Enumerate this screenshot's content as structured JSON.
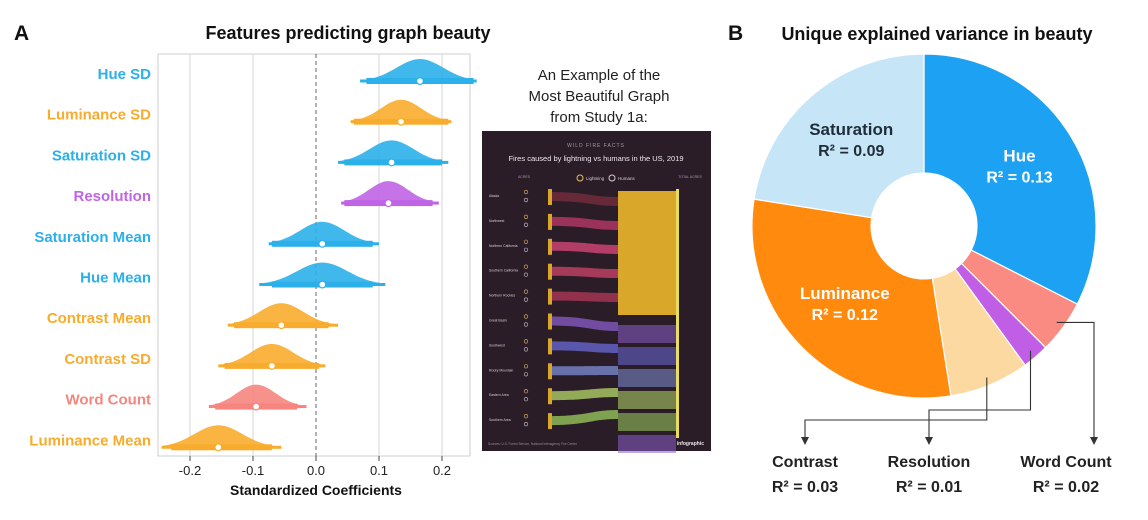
{
  "panel_a": {
    "letter": "A",
    "title": "Features predicting graph beauty",
    "xlabel": "Standardized Coefficients",
    "inset_caption": [
      "An Example of the",
      "Most Beautiful Graph",
      "from Study 1a:"
    ],
    "inset_chart": {
      "kicker": "WILD FIRE FACTS",
      "title": "Fires caused by lightning vs humans in the US, 2019",
      "legend": [
        "Lightning",
        "Humans"
      ],
      "col_left": "ACRES",
      "col_right": "TOTAL ACRES",
      "regions": [
        "Alaska",
        "Northwest",
        "Northern California",
        "Southern California",
        "Northern Rockies",
        "Great Basin",
        "Southwest",
        "Rocky Mountain",
        "Eastern Area",
        "Southern Area"
      ],
      "footer": "Sources: U.S. Forest Service, National Interagency Fire Center",
      "brand": "infographic"
    }
  },
  "panel_b": {
    "letter": "B",
    "title": "Unique explained variance in beauty",
    "slices": [
      {
        "name": "Hue",
        "r2": "R² = 0.13",
        "color": "#1DA1F2"
      },
      {
        "name": "Word Count",
        "r2": "R² = 0.02",
        "color": "#F98B82"
      },
      {
        "name": "Resolution",
        "r2": "R² = 0.01",
        "color": "#C05FE6"
      },
      {
        "name": "Contrast",
        "r2": "R² = 0.03",
        "color": "#FDD9A2"
      },
      {
        "name": "Luminance",
        "r2": "R² = 0.12",
        "color": "#FF8A0E"
      },
      {
        "name": "Saturation",
        "r2": "R² = 0.09",
        "color": "#C6E6F7"
      }
    ],
    "callouts": [
      {
        "name": "Contrast",
        "r2": "R² = 0.03"
      },
      {
        "name": "Resolution",
        "r2": "R² = 0.01"
      },
      {
        "name": "Word Count",
        "r2": "R² = 0.02"
      }
    ]
  },
  "chart_data": [
    {
      "type": "scatter",
      "title": "Features predicting graph beauty",
      "xlabel": "Standardized Coefficients",
      "ylabel": "",
      "xlim": [
        -0.25,
        0.25
      ],
      "xticks": [
        "-0.2",
        "-0.1",
        "0.0",
        "0.1",
        "0.2"
      ],
      "xtick_values": [
        -0.2,
        -0.1,
        0.0,
        0.1,
        0.2
      ],
      "reference_line": 0.0,
      "series": [
        {
          "name": "Hue SD",
          "color": "#2BB0EA",
          "estimate": 0.165,
          "ci95": [
            0.08,
            0.25
          ],
          "ci99": [
            0.07,
            0.255
          ],
          "spread": [
            0.07,
            0.255
          ]
        },
        {
          "name": "Luminance SD",
          "color": "#F8AC2D",
          "estimate": 0.135,
          "ci95": [
            0.06,
            0.21
          ],
          "ci99": [
            0.055,
            0.215
          ],
          "spread": [
            0.055,
            0.215
          ]
        },
        {
          "name": "Saturation SD",
          "color": "#2BB0EA",
          "estimate": 0.12,
          "ci95": [
            0.045,
            0.2
          ],
          "ci99": [
            0.035,
            0.21
          ],
          "spread": [
            0.035,
            0.21
          ]
        },
        {
          "name": "Resolution",
          "color": "#C064E6",
          "estimate": 0.115,
          "ci95": [
            0.045,
            0.185
          ],
          "ci99": [
            0.04,
            0.195
          ],
          "spread": [
            0.04,
            0.195
          ]
        },
        {
          "name": "Saturation Mean",
          "color": "#2BB0EA",
          "estimate": 0.01,
          "ci95": [
            -0.07,
            0.09
          ],
          "ci99": [
            -0.075,
            0.1
          ],
          "spread": [
            -0.075,
            0.1
          ]
        },
        {
          "name": "Hue Mean",
          "color": "#2BB0EA",
          "estimate": 0.01,
          "ci95": [
            -0.07,
            0.09
          ],
          "ci99": [
            -0.09,
            0.11
          ],
          "spread": [
            -0.09,
            0.11
          ]
        },
        {
          "name": "Contrast Mean",
          "color": "#F8AC2D",
          "estimate": -0.055,
          "ci95": [
            -0.13,
            0.02
          ],
          "ci99": [
            -0.14,
            0.035
          ],
          "spread": [
            -0.14,
            0.035
          ]
        },
        {
          "name": "Contrast SD",
          "color": "#F8AC2D",
          "estimate": -0.07,
          "ci95": [
            -0.145,
            0.005
          ],
          "ci99": [
            -0.155,
            0.015
          ],
          "spread": [
            -0.155,
            0.015
          ]
        },
        {
          "name": "Word Count",
          "color": "#F5857E",
          "estimate": -0.095,
          "ci95": [
            -0.16,
            -0.03
          ],
          "ci99": [
            -0.17,
            -0.015
          ],
          "spread": [
            -0.17,
            -0.015
          ]
        },
        {
          "name": "Luminance Mean",
          "color": "#F8AC2D",
          "estimate": -0.155,
          "ci95": [
            -0.23,
            -0.07
          ],
          "ci99": [
            -0.245,
            -0.055
          ],
          "spread": [
            -0.245,
            -0.055
          ]
        }
      ]
    },
    {
      "type": "pie",
      "title": "Unique explained variance in beauty",
      "categories": [
        "Hue",
        "Word Count",
        "Resolution",
        "Contrast",
        "Luminance",
        "Saturation"
      ],
      "values": [
        0.13,
        0.02,
        0.01,
        0.03,
        0.12,
        0.09
      ]
    }
  ]
}
